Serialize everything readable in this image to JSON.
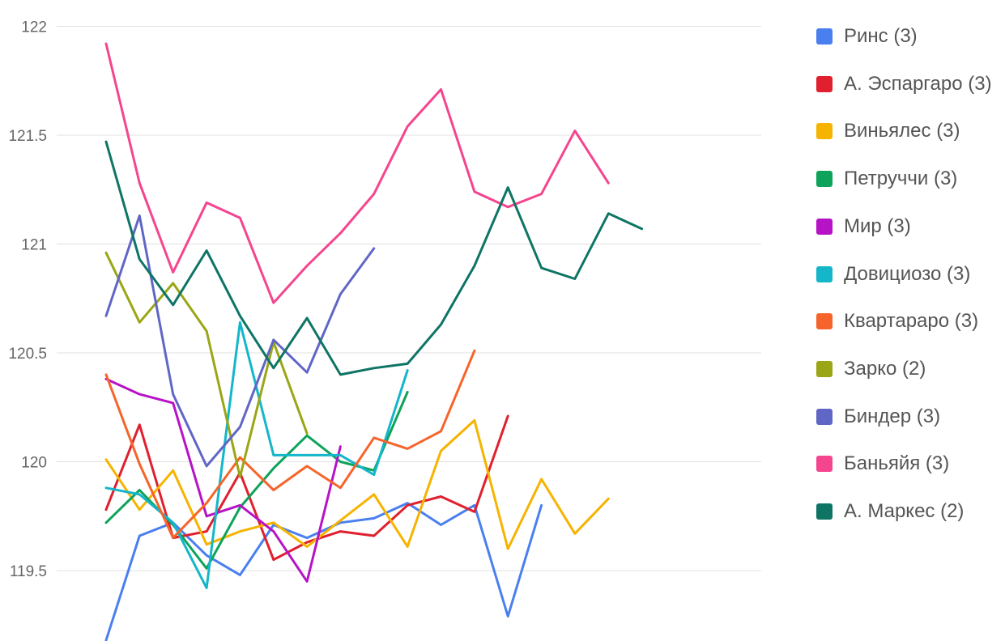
{
  "chart_data": {
    "type": "line",
    "ylim": [
      119.25,
      122
    ],
    "yticks": [
      "119.5",
      "120",
      "120.5",
      "121",
      "121.5",
      "122"
    ],
    "ytick_values": [
      119.5,
      120,
      120.5,
      121,
      121.5,
      122
    ],
    "x": [
      1,
      2,
      3,
      4,
      5,
      6,
      7,
      8,
      9,
      10,
      11,
      12,
      13,
      14,
      15,
      16,
      17
    ],
    "grid": true,
    "legend_position": "right",
    "series": [
      {
        "name": "Ринс (3)",
        "color": "#4a7ff0",
        "values": [
          119.18,
          119.66,
          119.72,
          119.57,
          119.48,
          119.71,
          119.65,
          119.72,
          119.74,
          119.81,
          119.71,
          119.8,
          119.29,
          119.8,
          null,
          null,
          null
        ]
      },
      {
        "name": "А. Эспаргаро (3)",
        "color": "#e0202e",
        "values": [
          119.78,
          120.17,
          119.65,
          119.68,
          119.95,
          119.55,
          119.63,
          119.68,
          119.66,
          119.8,
          119.84,
          119.77,
          120.21,
          null,
          null,
          null,
          null
        ]
      },
      {
        "name": "Виньялес (3)",
        "color": "#f6b300",
        "values": [
          120.01,
          119.78,
          119.96,
          119.62,
          119.68,
          119.72,
          119.61,
          119.73,
          119.85,
          119.61,
          120.05,
          120.19,
          119.6,
          119.92,
          119.67,
          119.83,
          null
        ]
      },
      {
        "name": "Петруччи (3)",
        "color": "#0ea35a",
        "values": [
          119.72,
          119.87,
          119.71,
          119.51,
          119.79,
          119.97,
          120.12,
          120.0,
          119.96,
          120.32,
          null,
          null,
          null,
          null,
          null,
          null,
          null
        ]
      },
      {
        "name": "Мир (3)",
        "color": "#b713c6",
        "values": [
          120.38,
          120.31,
          120.27,
          119.75,
          119.8,
          119.68,
          119.45,
          120.07,
          null,
          null,
          null,
          null,
          null,
          null,
          null,
          null,
          null
        ]
      },
      {
        "name": "Довициозо (3)",
        "color": "#14b6c9",
        "values": [
          119.88,
          119.85,
          119.72,
          119.42,
          120.64,
          120.03,
          120.03,
          120.03,
          119.94,
          120.42,
          null,
          null,
          null,
          null,
          null,
          null,
          null
        ]
      },
      {
        "name": "Квартараро (3)",
        "color": "#f7642b",
        "values": [
          120.4,
          119.99,
          119.65,
          119.81,
          120.02,
          119.87,
          119.98,
          119.88,
          120.11,
          120.06,
          120.14,
          120.51,
          null,
          null,
          null,
          null,
          null
        ]
      },
      {
        "name": "Зарко (2)",
        "color": "#9aa615",
        "values": [
          120.96,
          120.64,
          120.82,
          120.6,
          119.93,
          120.55,
          120.13,
          null,
          null,
          null,
          null,
          null,
          null,
          null,
          null,
          null,
          null
        ]
      },
      {
        "name": "Биндер (3)",
        "color": "#6066c6",
        "values": [
          120.67,
          121.13,
          120.31,
          119.98,
          120.16,
          120.56,
          120.41,
          120.77,
          120.98,
          null,
          null,
          null,
          null,
          null,
          null,
          null,
          null
        ]
      },
      {
        "name": "Баньяйя (3)",
        "color": "#f5458e",
        "values": [
          121.92,
          121.28,
          120.87,
          121.19,
          121.12,
          120.73,
          120.9,
          121.05,
          121.23,
          121.54,
          121.71,
          121.24,
          121.17,
          121.23,
          121.52,
          121.28,
          null
        ]
      },
      {
        "name": "А. Маркес (2)",
        "color": "#0e7565",
        "values": [
          121.47,
          120.93,
          120.72,
          120.97,
          120.67,
          120.43,
          120.66,
          120.4,
          120.43,
          120.45,
          120.63,
          120.9,
          121.26,
          120.89,
          120.84,
          121.14,
          121.07
        ]
      }
    ]
  }
}
